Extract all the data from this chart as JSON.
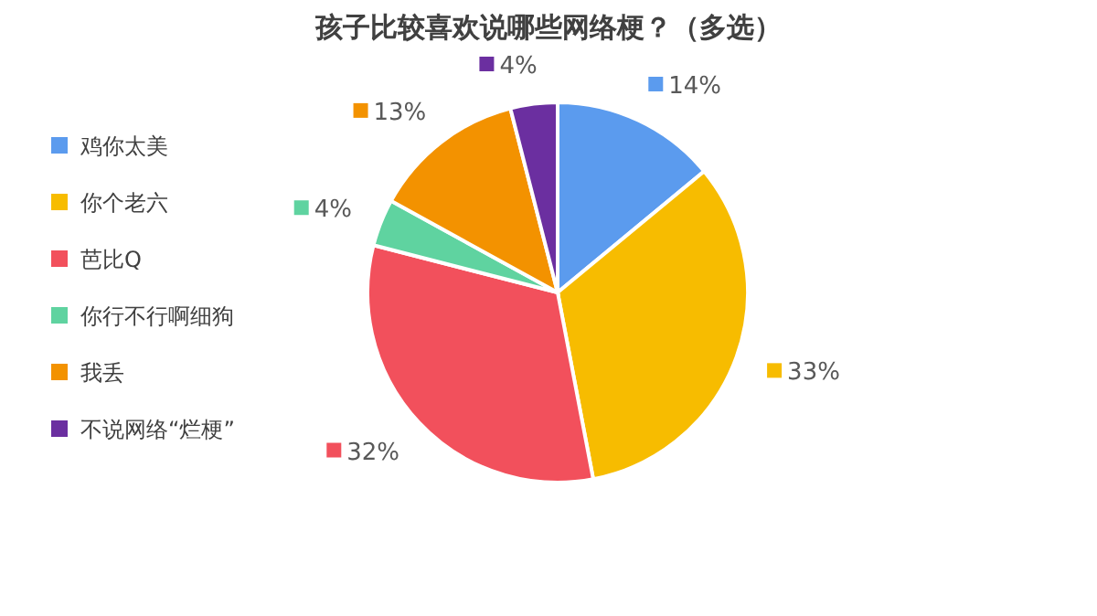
{
  "chart_data": {
    "type": "pie",
    "title": "孩子比较喜欢说哪些网络梗？（多选）",
    "categories": [
      "鸡你太美",
      "你个老六",
      "芭比Q",
      "你行不行啊细狗",
      "我丢",
      "不说网络“烂梗”"
    ],
    "values": [
      14,
      33,
      32,
      4,
      13,
      4
    ],
    "value_labels": [
      "14%",
      "33%",
      "32%",
      "4%",
      "13%",
      "4%"
    ],
    "colors": [
      "#5b9bee",
      "#f7bc00",
      "#f2505c",
      "#5fd3a0",
      "#f39200",
      "#6b2fa0"
    ],
    "legend": "left"
  }
}
